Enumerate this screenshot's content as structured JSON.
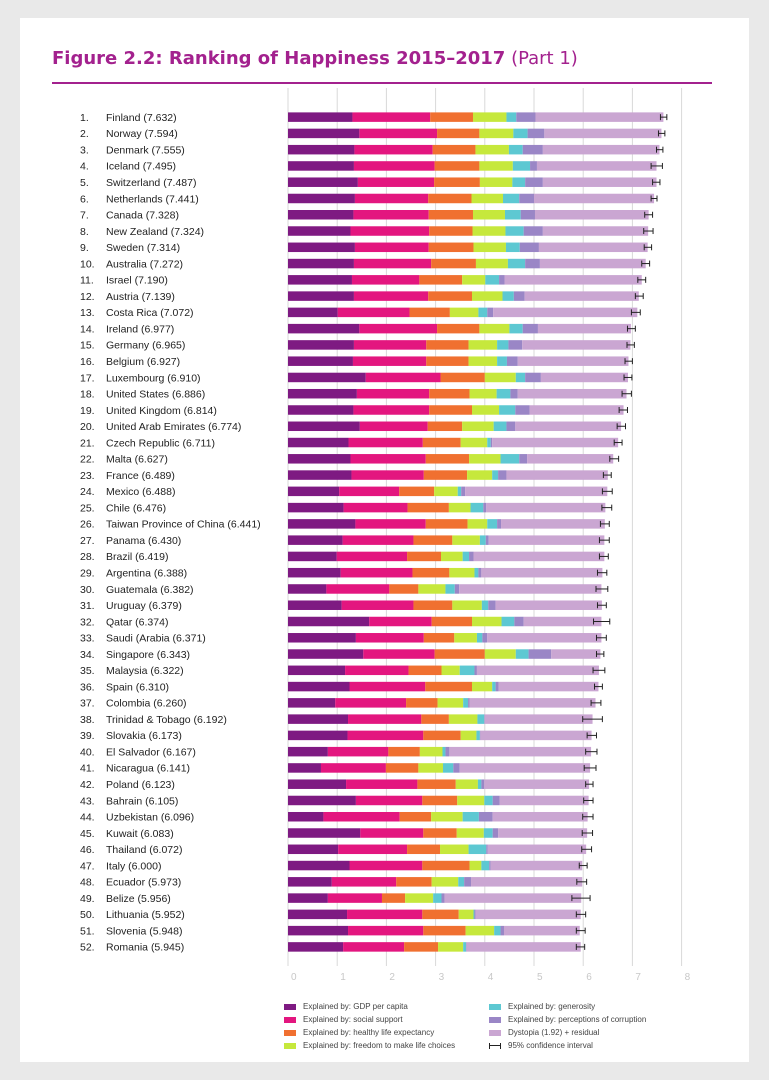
{
  "title": {
    "main": "Figure 2.2: Ranking of Happiness 2015–2017",
    "sub": "(Part 1)"
  },
  "colors": {
    "gdp": "#7e1a82",
    "social": "#e3167f",
    "health": "#f07030",
    "freedom": "#c6e83c",
    "generosity": "#5dc8d2",
    "corruption": "#9a86c6",
    "dystopia": "#caa6d2",
    "ci": "#222222",
    "title": "#a3218e"
  },
  "legend": [
    {
      "key": "gdp",
      "label": "Explained by: GDP per capita"
    },
    {
      "key": "social",
      "label": "Explained by: social support"
    },
    {
      "key": "health",
      "label": "Explained by: healthy life expectancy"
    },
    {
      "key": "freedom",
      "label": "Explained by: freedom to make life choices"
    },
    {
      "key": "generosity",
      "label": "Explained by: generosity"
    },
    {
      "key": "corruption",
      "label": "Explained by: perceptions of corruption"
    },
    {
      "key": "dystopia",
      "label": "Dystopia (1.92) + residual"
    },
    {
      "key": "ci",
      "label": "95% confidence interval"
    }
  ],
  "chart_data": {
    "type": "bar",
    "orientation": "horizontal",
    "stacked": true,
    "title": "Figure 2.2: Ranking of Happiness 2015–2017 (Part 1)",
    "xlim": [
      0,
      8
    ],
    "xticks": [
      0,
      1,
      2,
      3,
      4,
      5,
      6,
      7,
      8
    ],
    "series_names": [
      "Explained by: GDP per capita",
      "Explained by: social support",
      "Explained by: healthy life expectancy",
      "Explained by: freedom to make life choices",
      "Explained by: generosity",
      "Explained by: perceptions of corruption",
      "Dystopia (1.92) + residual"
    ],
    "rows": [
      {
        "rank": "1.",
        "label": "Finland (7.632)",
        "score": 7.632,
        "components": [
          1.31,
          1.58,
          0.87,
          0.68,
          0.2,
          0.39,
          2.6
        ],
        "ci": [
          7.57,
          7.7
        ]
      },
      {
        "rank": "2.",
        "label": "Norway (7.594)",
        "score": 7.594,
        "components": [
          1.45,
          1.58,
          0.86,
          0.69,
          0.29,
          0.34,
          2.38
        ],
        "ci": [
          7.53,
          7.66
        ]
      },
      {
        "rank": "3.",
        "label": "Denmark (7.555)",
        "score": 7.555,
        "components": [
          1.35,
          1.59,
          0.87,
          0.68,
          0.28,
          0.41,
          2.37
        ],
        "ci": [
          7.49,
          7.62
        ]
      },
      {
        "rank": "4.",
        "label": "Iceland (7.495)",
        "score": 7.495,
        "components": [
          1.34,
          1.64,
          0.91,
          0.68,
          0.35,
          0.14,
          2.43
        ],
        "ci": [
          7.38,
          7.61
        ]
      },
      {
        "rank": "5.",
        "label": "Switzerland (7.487)",
        "score": 7.487,
        "components": [
          1.42,
          1.55,
          0.93,
          0.66,
          0.26,
          0.36,
          2.31
        ],
        "ci": [
          7.41,
          7.56
        ]
      },
      {
        "rank": "6.",
        "label": "Netherlands (7.441)",
        "score": 7.441,
        "components": [
          1.36,
          1.49,
          0.88,
          0.64,
          0.33,
          0.3,
          2.44
        ],
        "ci": [
          7.38,
          7.5
        ]
      },
      {
        "rank": "7.",
        "label": "Canada (7.328)",
        "score": 7.328,
        "components": [
          1.33,
          1.53,
          0.9,
          0.65,
          0.32,
          0.29,
          2.31
        ],
        "ci": [
          7.25,
          7.41
        ]
      },
      {
        "rank": "8.",
        "label": "New Zealand (7.324)",
        "score": 7.324,
        "components": [
          1.27,
          1.6,
          0.88,
          0.67,
          0.37,
          0.39,
          2.14
        ],
        "ci": [
          7.23,
          7.42
        ]
      },
      {
        "rank": "9.",
        "label": "Sweden (7.314)",
        "score": 7.314,
        "components": [
          1.36,
          1.5,
          0.91,
          0.66,
          0.28,
          0.39,
          2.21
        ],
        "ci": [
          7.24,
          7.39
        ]
      },
      {
        "rank": "10.",
        "label": "Australia (7.272)",
        "score": 7.272,
        "components": [
          1.34,
          1.57,
          0.91,
          0.65,
          0.35,
          0.3,
          2.15
        ],
        "ci": [
          7.19,
          7.35
        ]
      },
      {
        "rank": "11.",
        "label": "Israel (7.190)",
        "score": 7.19,
        "components": [
          1.3,
          1.37,
          0.87,
          0.47,
          0.28,
          0.11,
          2.79
        ],
        "ci": [
          7.11,
          7.27
        ]
      },
      {
        "rank": "12.",
        "label": "Austria (7.139)",
        "score": 7.139,
        "components": [
          1.34,
          1.51,
          0.89,
          0.62,
          0.23,
          0.22,
          2.32
        ],
        "ci": [
          7.06,
          7.22
        ]
      },
      {
        "rank": "13.",
        "label": "Costa Rica (7.072)",
        "score": 7.072,
        "components": [
          1.01,
          1.46,
          0.82,
          0.58,
          0.18,
          0.12,
          2.93
        ],
        "ci": [
          6.98,
          7.16
        ]
      },
      {
        "rank": "14.",
        "label": "Ireland (6.977)",
        "score": 6.977,
        "components": [
          1.45,
          1.58,
          0.86,
          0.61,
          0.27,
          0.31,
          1.89
        ],
        "ci": [
          6.9,
          7.06
        ]
      },
      {
        "rank": "15.",
        "label": "Germany (6.965)",
        "score": 6.965,
        "components": [
          1.34,
          1.47,
          0.86,
          0.58,
          0.23,
          0.28,
          2.2
        ],
        "ci": [
          6.89,
          7.04
        ]
      },
      {
        "rank": "16.",
        "label": "Belgium (6.927)",
        "score": 6.927,
        "components": [
          1.32,
          1.49,
          0.86,
          0.58,
          0.2,
          0.22,
          2.25
        ],
        "ci": [
          6.85,
          7.0
        ]
      },
      {
        "rank": "17.",
        "label": "Luxembourg (6.910)",
        "score": 6.91,
        "components": [
          1.58,
          1.52,
          0.9,
          0.63,
          0.19,
          0.32,
          1.77
        ],
        "ci": [
          6.83,
          6.99
        ]
      },
      {
        "rank": "18.",
        "label": "United States (6.886)",
        "score": 6.886,
        "components": [
          1.4,
          1.47,
          0.82,
          0.55,
          0.28,
          0.15,
          2.21
        ],
        "ci": [
          6.79,
          6.98
        ]
      },
      {
        "rank": "19.",
        "label": "United Kingdom (6.814)",
        "score": 6.814,
        "components": [
          1.33,
          1.54,
          0.87,
          0.55,
          0.33,
          0.29,
          1.91
        ],
        "ci": [
          6.73,
          6.9
        ]
      },
      {
        "rank": "20.",
        "label": "United Arab Emirates (6.774)",
        "score": 6.774,
        "components": [
          1.46,
          1.38,
          0.7,
          0.64,
          0.26,
          0.18,
          2.15
        ],
        "ci": [
          6.69,
          6.86
        ]
      },
      {
        "rank": "21.",
        "label": "Czech Republic (6.711)",
        "score": 6.711,
        "components": [
          1.23,
          1.51,
          0.77,
          0.54,
          0.07,
          0.03,
          2.56
        ],
        "ci": [
          6.63,
          6.79
        ]
      },
      {
        "rank": "22.",
        "label": "Malta (6.627)",
        "score": 6.627,
        "components": [
          1.27,
          1.53,
          0.88,
          0.64,
          0.38,
          0.16,
          1.75
        ],
        "ci": [
          6.54,
          6.72
        ]
      },
      {
        "rank": "23.",
        "label": "France (6.489)",
        "score": 6.489,
        "components": [
          1.29,
          1.47,
          0.88,
          0.51,
          0.12,
          0.17,
          2.06
        ],
        "ci": [
          6.41,
          6.57
        ]
      },
      {
        "rank": "24.",
        "label": "Mexico (6.488)",
        "score": 6.488,
        "components": [
          1.04,
          1.22,
          0.71,
          0.48,
          0.07,
          0.08,
          2.89
        ],
        "ci": [
          6.39,
          6.59
        ]
      },
      {
        "rank": "25.",
        "label": "Chile (6.476)",
        "score": 6.476,
        "components": [
          1.13,
          1.3,
          0.84,
          0.44,
          0.26,
          0.06,
          2.42
        ],
        "ci": [
          6.38,
          6.58
        ]
      },
      {
        "rank": "26.",
        "label": "Taiwan Province of China (6.441)",
        "score": 6.441,
        "components": [
          1.37,
          1.43,
          0.85,
          0.4,
          0.2,
          0.08,
          2.11
        ],
        "ci": [
          6.35,
          6.53
        ]
      },
      {
        "rank": "27.",
        "label": "Panama (6.430)",
        "score": 6.43,
        "components": [
          1.11,
          1.44,
          0.79,
          0.56,
          0.12,
          0.06,
          2.35
        ],
        "ci": [
          6.33,
          6.53
        ]
      },
      {
        "rank": "28.",
        "label": "Brazil (6.419)",
        "score": 6.419,
        "components": [
          0.99,
          1.43,
          0.69,
          0.44,
          0.13,
          0.09,
          2.66
        ],
        "ci": [
          6.33,
          6.51
        ]
      },
      {
        "rank": "29.",
        "label": "Argentina (6.388)",
        "score": 6.388,
        "components": [
          1.07,
          1.46,
          0.75,
          0.51,
          0.08,
          0.06,
          2.46
        ],
        "ci": [
          6.29,
          6.48
        ]
      },
      {
        "rank": "30.",
        "label": "Guatemala (6.382)",
        "score": 6.382,
        "components": [
          0.78,
          1.28,
          0.59,
          0.55,
          0.19,
          0.09,
          2.89
        ],
        "ci": [
          6.26,
          6.5
        ]
      },
      {
        "rank": "31.",
        "label": "Uruguay (6.379)",
        "score": 6.379,
        "components": [
          1.09,
          1.46,
          0.79,
          0.6,
          0.13,
          0.15,
          2.16
        ],
        "ci": [
          6.29,
          6.47
        ]
      },
      {
        "rank": "32.",
        "label": "Qatar (6.374)",
        "score": 6.374,
        "components": [
          1.65,
          1.27,
          0.82,
          0.6,
          0.26,
          0.19,
          1.58
        ],
        "ci": [
          6.21,
          6.54
        ]
      },
      {
        "rank": "33.",
        "label": "Saudi (Arabia (6.371)",
        "score": 6.371,
        "components": [
          1.38,
          1.38,
          0.62,
          0.46,
          0.11,
          0.1,
          2.32
        ],
        "ci": [
          6.27,
          6.47
        ]
      },
      {
        "rank": "34.",
        "label": "Singapore (6.343)",
        "score": 6.343,
        "components": [
          1.53,
          1.45,
          1.02,
          0.63,
          0.26,
          0.46,
          1.0
        ],
        "ci": [
          6.27,
          6.42
        ]
      },
      {
        "rank": "35.",
        "label": "Malaysia (6.322)",
        "score": 6.322,
        "components": [
          1.16,
          1.29,
          0.67,
          0.37,
          0.3,
          0.05,
          2.48
        ],
        "ci": [
          6.2,
          6.44
        ]
      },
      {
        "rank": "36.",
        "label": "Spain (6.310)",
        "score": 6.31,
        "components": [
          1.25,
          1.54,
          0.95,
          0.41,
          0.07,
          0.06,
          2.03
        ],
        "ci": [
          6.23,
          6.39
        ]
      },
      {
        "rank": "37.",
        "label": "Colombia (6.260)",
        "score": 6.26,
        "components": [
          0.96,
          1.44,
          0.64,
          0.52,
          0.1,
          0.03,
          2.56
        ],
        "ci": [
          6.16,
          6.36
        ]
      },
      {
        "rank": "38.",
        "label": "Trinidad & Tobago (6.192)",
        "score": 6.192,
        "components": [
          1.22,
          1.49,
          0.56,
          0.58,
          0.14,
          0.01,
          2.19
        ],
        "ci": [
          5.99,
          6.39
        ]
      },
      {
        "rank": "39.",
        "label": "Slovakia (6.173)",
        "score": 6.173,
        "components": [
          1.21,
          1.54,
          0.76,
          0.32,
          0.07,
          0.01,
          2.26
        ],
        "ci": [
          6.08,
          6.27
        ]
      },
      {
        "rank": "40.",
        "label": "El Salvador (6.167)",
        "score": 6.167,
        "components": [
          0.81,
          1.23,
          0.64,
          0.46,
          0.06,
          0.08,
          2.88
        ],
        "ci": [
          6.05,
          6.28
        ]
      },
      {
        "rank": "41.",
        "label": "Nicaragua (6.141)",
        "score": 6.141,
        "components": [
          0.67,
          1.32,
          0.66,
          0.5,
          0.21,
          0.13,
          2.65
        ],
        "ci": [
          6.02,
          6.26
        ]
      },
      {
        "rank": "42.",
        "label": "Poland (6.123)",
        "score": 6.123,
        "components": [
          1.18,
          1.45,
          0.78,
          0.45,
          0.07,
          0.06,
          2.13
        ],
        "ci": [
          6.05,
          6.2
        ]
      },
      {
        "rank": "43.",
        "label": "Bahrain (6.105)",
        "score": 6.105,
        "components": [
          1.38,
          1.35,
          0.71,
          0.55,
          0.17,
          0.14,
          1.81
        ],
        "ci": [
          6.01,
          6.2
        ]
      },
      {
        "rank": "44.",
        "label": "Uzbekistan (6.096)",
        "score": 6.096,
        "components": [
          0.72,
          1.55,
          0.64,
          0.64,
          0.33,
          0.28,
          1.93
        ],
        "ci": [
          5.99,
          6.2
        ]
      },
      {
        "rank": "45.",
        "label": "Kuwait (6.083)",
        "score": 6.083,
        "components": [
          1.47,
          1.28,
          0.68,
          0.55,
          0.18,
          0.11,
          1.81
        ],
        "ci": [
          5.98,
          6.19
        ]
      },
      {
        "rank": "46.",
        "label": "Thailand (6.072)",
        "score": 6.072,
        "components": [
          1.02,
          1.4,
          0.67,
          0.58,
          0.36,
          0.03,
          2.0
        ],
        "ci": [
          5.97,
          6.17
        ]
      },
      {
        "rank": "47.",
        "label": "Italy (6.000)",
        "score": 6.0,
        "components": [
          1.25,
          1.48,
          0.96,
          0.24,
          0.16,
          0.03,
          1.86
        ],
        "ci": [
          5.92,
          6.08
        ]
      },
      {
        "rank": "48.",
        "label": "Ecuador (5.973)",
        "score": 5.973,
        "components": [
          0.89,
          1.31,
          0.72,
          0.54,
          0.12,
          0.14,
          2.26
        ],
        "ci": [
          5.87,
          6.07
        ]
      },
      {
        "rank": "49.",
        "label": "Belize (5.956)",
        "score": 5.956,
        "components": [
          0.81,
          1.1,
          0.47,
          0.57,
          0.17,
          0.06,
          2.78
        ],
        "ci": [
          5.77,
          6.14
        ]
      },
      {
        "rank": "50.",
        "label": "Lithuania (5.952)",
        "score": 5.952,
        "components": [
          1.2,
          1.53,
          0.74,
          0.3,
          0.02,
          0.02,
          2.14
        ],
        "ci": [
          5.86,
          6.05
        ]
      },
      {
        "rank": "51.",
        "label": "Slovenia (5.948)",
        "score": 5.948,
        "components": [
          1.22,
          1.53,
          0.86,
          0.58,
          0.13,
          0.07,
          1.54
        ],
        "ci": [
          5.86,
          6.04
        ]
      },
      {
        "rank": "52.",
        "label": "Romania (5.945)",
        "score": 5.945,
        "components": [
          1.12,
          1.24,
          0.69,
          0.51,
          0.06,
          0.01,
          2.32
        ],
        "ci": [
          5.86,
          6.03
        ]
      }
    ]
  }
}
